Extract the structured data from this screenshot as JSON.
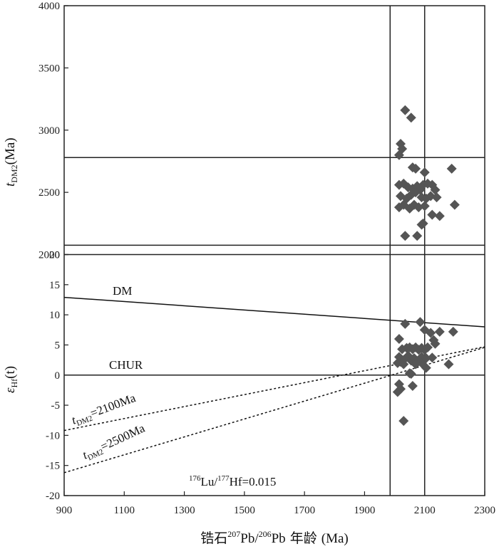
{
  "chart_data": [
    {
      "type": "scatter",
      "panel": "top",
      "xlim": [
        900,
        2300
      ],
      "ylim": [
        2000,
        4000
      ],
      "yticks": [
        "2000",
        "2500",
        "3000",
        "3500",
        "4000"
      ],
      "ylabel": {
        "main": "t",
        "sub": "DM2",
        "rest": "(Ma)"
      },
      "reference_lines": {
        "vertical": [
          1985,
          2100
        ],
        "horizontal": [
          2780,
          2075
        ]
      },
      "series": [
        {
          "marker": "diamond",
          "color": "#555555",
          "x": [
            2035,
            2055,
            2020,
            2025,
            2015,
            2060,
            2070,
            2100,
            2190,
            2015,
            2030,
            2045,
            2060,
            2075,
            2085,
            2095,
            2110,
            2125,
            2135,
            2020,
            2040,
            2055,
            2070,
            2090,
            2105,
            2120,
            2140,
            2015,
            2030,
            2050,
            2065,
            2080,
            2100,
            2125,
            2150,
            2200,
            2095,
            2035,
            2075,
            2090
          ],
          "y": [
            3160,
            3100,
            2890,
            2850,
            2800,
            2700,
            2690,
            2660,
            2690,
            2560,
            2570,
            2540,
            2530,
            2550,
            2520,
            2560,
            2570,
            2560,
            2520,
            2470,
            2450,
            2480,
            2500,
            2460,
            2450,
            2470,
            2460,
            2380,
            2400,
            2370,
            2400,
            2380,
            2390,
            2320,
            2310,
            2400,
            2250,
            2150,
            2150,
            2240
          ]
        }
      ]
    },
    {
      "type": "scatter",
      "panel": "bottom",
      "xlim": [
        900,
        2300
      ],
      "ylim": [
        -20,
        20
      ],
      "xticks": [
        "900",
        "1100",
        "1300",
        "1500",
        "1700",
        "1900",
        "2100",
        "2300"
      ],
      "yticks": [
        "-20",
        "-15",
        "-10",
        "-5",
        "0",
        "5",
        "10",
        "15",
        "20"
      ],
      "ylabel": {
        "main": "ε",
        "sub": "Hf",
        "rest": "(t)"
      },
      "xlabel": {
        "cn1": "锆石",
        "s1": "207",
        "t1": "Pb/",
        "s2": "206",
        "t2": "Pb",
        "cn2": " 年龄 ",
        "unit": "(Ma)"
      },
      "reference_lines": {
        "vertical": [
          1985,
          2100
        ],
        "horizontal": [
          0
        ]
      },
      "lines": [
        {
          "name": "DM",
          "style": "solid",
          "x": [
            900,
            2300
          ],
          "y": [
            12.9,
            8.0
          ]
        },
        {
          "name": "tDM2=2100Ma",
          "style": "dotted",
          "x": [
            900,
            2300
          ],
          "y": [
            -9.2,
            4.7
          ]
        },
        {
          "name": "tDM2=2500Ma",
          "style": "dotted",
          "x": [
            900,
            2300
          ],
          "y": [
            -16.2,
            4.6
          ]
        }
      ],
      "annotations": {
        "dm": "DM",
        "chur": "CHUR",
        "t2100": {
          "t": "t",
          "sub": "DM2",
          "rest": "=2100Ma"
        },
        "t2500": {
          "t": "t",
          "sub": "DM2",
          "rest": "=2500Ma"
        },
        "lu": {
          "s1": "176",
          "t1": "Lu/",
          "s2": "177",
          "t2": "Hf=0.015"
        }
      },
      "series": [
        {
          "marker": "diamond",
          "color": "#555555",
          "x": [
            2085,
            2035,
            2100,
            2120,
            2150,
            2195,
            2015,
            2025,
            2040,
            2050,
            2060,
            2070,
            2080,
            2090,
            2100,
            2110,
            2130,
            2135,
            2015,
            2020,
            2030,
            2045,
            2055,
            2065,
            2075,
            2090,
            2105,
            2125,
            2180,
            2010,
            2030,
            2050,
            2070,
            2090,
            2105,
            2055,
            2015,
            2060,
            2020,
            2010,
            2030
          ],
          "y": [
            8.8,
            8.5,
            7.5,
            7.0,
            7.2,
            7.2,
            6.0,
            4.3,
            4.5,
            4.6,
            4.3,
            4.6,
            4.2,
            4.5,
            4.2,
            4.6,
            5.8,
            5.2,
            3.0,
            2.2,
            2.5,
            3.2,
            2.4,
            2.8,
            2.3,
            2.0,
            1.2,
            2.9,
            1.8,
            2.0,
            1.8,
            0.3,
            1.8,
            3.0,
            2.8,
            0.2,
            -1.5,
            -1.8,
            -2.3,
            -2.8,
            -7.6
          ]
        }
      ]
    }
  ]
}
